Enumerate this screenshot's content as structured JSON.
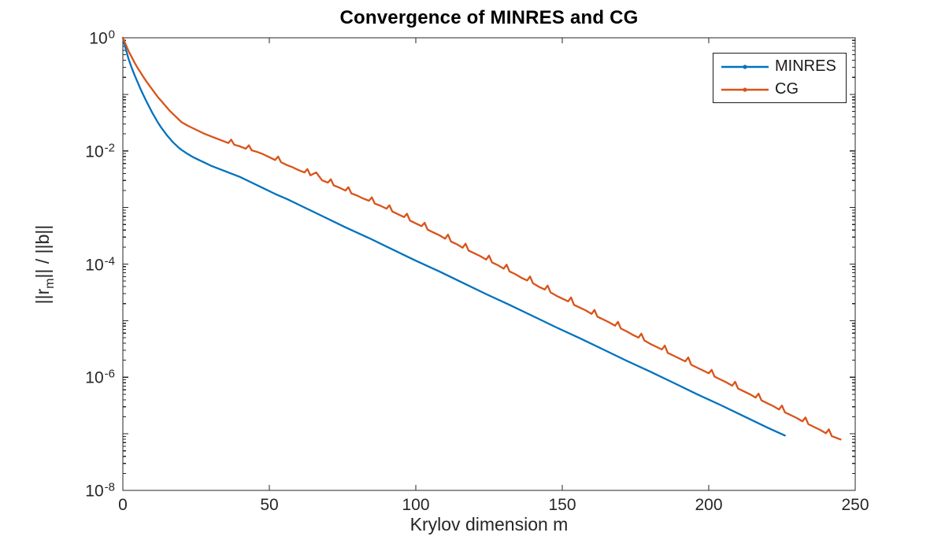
{
  "figure": {
    "title": "Convergence of MINRES and CG",
    "xlabel": "Krylov dimension m",
    "ylabel": {
      "prefix": "||r",
      "sub": "m",
      "suffix": "|| / ||b||"
    }
  },
  "legend": {
    "items": [
      {
        "label": "MINRES",
        "color": "#0072BD"
      },
      {
        "label": "CG",
        "color": "#D95319"
      }
    ]
  },
  "chart_data": {
    "type": "line",
    "title": "Convergence of MINRES and CG",
    "xlabel": "Krylov dimension m",
    "ylabel": "||r_m|| / ||b||",
    "grid": false,
    "legend_position": "northeast",
    "axis_color": "#252525",
    "x_axis": {
      "min": 0,
      "max": 250,
      "ticks": [
        0,
        50,
        100,
        150,
        200,
        250
      ]
    },
    "y_axis": {
      "scale": "log",
      "base": 10,
      "min_exp": -8,
      "max_exp": 0,
      "tick_base": "10",
      "tick_exponents": [
        0,
        -2,
        -4,
        -6,
        -8
      ]
    },
    "series": [
      {
        "name": "MINRES",
        "color": "#0072BD",
        "marker": "dot",
        "m": [
          0,
          1,
          2,
          3,
          4,
          5,
          6,
          7,
          8,
          9,
          10,
          11,
          12,
          13,
          14,
          15,
          16,
          17,
          18,
          19,
          20,
          22,
          24,
          26,
          28,
          30,
          32,
          34,
          36,
          38,
          40,
          44,
          48,
          52,
          56,
          60,
          68,
          76,
          84,
          92,
          100,
          108,
          116,
          124,
          132,
          140,
          148,
          156,
          164,
          172,
          180,
          188,
          196,
          204,
          212,
          220,
          226
        ],
        "log10_residual": [
          0,
          -0.2,
          -0.38,
          -0.53,
          -0.66,
          -0.78,
          -0.9,
          -1.01,
          -1.12,
          -1.22,
          -1.32,
          -1.41,
          -1.5,
          -1.58,
          -1.65,
          -1.72,
          -1.78,
          -1.84,
          -1.89,
          -1.94,
          -1.98,
          -2.05,
          -2.11,
          -2.16,
          -2.21,
          -2.26,
          -2.3,
          -2.34,
          -2.38,
          -2.42,
          -2.46,
          -2.56,
          -2.66,
          -2.76,
          -2.85,
          -2.95,
          -3.15,
          -3.35,
          -3.54,
          -3.74,
          -3.94,
          -4.13,
          -4.33,
          -4.53,
          -4.72,
          -4.92,
          -5.12,
          -5.31,
          -5.51,
          -5.71,
          -5.9,
          -6.1,
          -6.3,
          -6.49,
          -6.69,
          -6.89,
          -7.03
        ]
      },
      {
        "name": "CG",
        "color": "#D95319",
        "marker": "dot",
        "m": [
          0,
          1,
          2,
          3,
          4,
          5,
          6,
          7,
          8,
          9,
          10,
          11,
          12,
          13,
          14,
          15,
          16,
          17,
          18,
          19,
          20,
          22,
          24,
          26,
          28,
          30,
          32,
          34,
          36,
          37,
          38,
          40,
          42,
          43,
          44,
          46,
          48,
          50,
          52,
          53,
          54,
          56,
          58,
          60,
          62,
          63,
          64,
          66,
          68,
          70,
          71,
          72,
          74,
          76,
          77,
          78,
          80,
          82,
          84,
          85,
          86,
          88,
          90,
          91,
          92,
          94,
          96,
          97,
          98,
          100,
          102,
          103,
          104,
          106,
          108,
          110,
          111,
          112,
          114,
          116,
          117,
          118,
          120,
          122,
          124,
          125,
          126,
          128,
          130,
          131,
          132,
          134,
          136,
          138,
          139,
          140,
          142,
          144,
          145,
          146,
          148,
          150,
          152,
          153,
          154,
          156,
          158,
          160,
          161,
          162,
          164,
          166,
          168,
          169,
          170,
          172,
          174,
          176,
          177,
          178,
          180,
          182,
          184,
          185,
          186,
          188,
          190,
          192,
          193,
          194,
          196,
          198,
          200,
          201,
          202,
          204,
          206,
          208,
          209,
          210,
          212,
          214,
          216,
          217,
          218,
          220,
          222,
          224,
          225,
          226,
          228,
          230,
          232,
          233,
          234,
          236,
          238,
          240,
          241,
          242,
          244,
          245
        ],
        "log10_residual": [
          0,
          -0.12,
          -0.24,
          -0.34,
          -0.44,
          -0.53,
          -0.61,
          -0.69,
          -0.77,
          -0.84,
          -0.91,
          -0.98,
          -1.05,
          -1.11,
          -1.17,
          -1.23,
          -1.29,
          -1.34,
          -1.39,
          -1.44,
          -1.49,
          -1.55,
          -1.6,
          -1.65,
          -1.7,
          -1.74,
          -1.78,
          -1.82,
          -1.86,
          -1.8,
          -1.89,
          -1.92,
          -1.96,
          -1.9,
          -1.99,
          -2.02,
          -2.06,
          -2.11,
          -2.16,
          -2.1,
          -2.2,
          -2.25,
          -2.29,
          -2.34,
          -2.38,
          -2.32,
          -2.43,
          -2.38,
          -2.52,
          -2.56,
          -2.5,
          -2.61,
          -2.65,
          -2.7,
          -2.64,
          -2.75,
          -2.79,
          -2.84,
          -2.88,
          -2.82,
          -2.93,
          -2.97,
          -3.02,
          -2.96,
          -3.07,
          -3.12,
          -3.17,
          -3.11,
          -3.23,
          -3.28,
          -3.33,
          -3.27,
          -3.39,
          -3.44,
          -3.49,
          -3.55,
          -3.48,
          -3.6,
          -3.65,
          -3.71,
          -3.64,
          -3.76,
          -3.81,
          -3.86,
          -3.92,
          -3.85,
          -3.97,
          -4.02,
          -4.08,
          -4.01,
          -4.13,
          -4.18,
          -4.24,
          -4.29,
          -4.22,
          -4.34,
          -4.4,
          -4.45,
          -4.38,
          -4.5,
          -4.56,
          -4.61,
          -4.66,
          -4.59,
          -4.72,
          -4.77,
          -4.82,
          -4.88,
          -4.81,
          -4.93,
          -4.98,
          -5.03,
          -5.09,
          -5.02,
          -5.14,
          -5.19,
          -5.25,
          -5.3,
          -5.23,
          -5.35,
          -5.41,
          -5.46,
          -5.51,
          -5.44,
          -5.57,
          -5.62,
          -5.67,
          -5.72,
          -5.65,
          -5.78,
          -5.83,
          -5.88,
          -5.93,
          -5.87,
          -5.99,
          -6.04,
          -6.09,
          -6.15,
          -6.08,
          -6.2,
          -6.25,
          -6.3,
          -6.36,
          -6.29,
          -6.41,
          -6.46,
          -6.51,
          -6.57,
          -6.5,
          -6.62,
          -6.67,
          -6.72,
          -6.78,
          -6.71,
          -6.83,
          -6.88,
          -6.93,
          -6.99,
          -6.92,
          -7.04,
          -7.08,
          -7.1
        ]
      }
    ]
  }
}
